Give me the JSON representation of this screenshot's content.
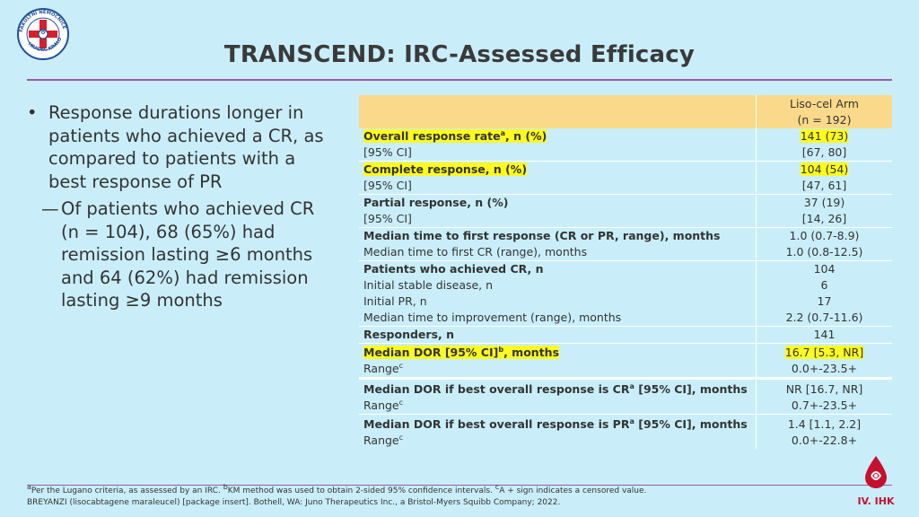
{
  "header": {
    "title": "TRANSCEND: IRC-Assessed Efficacy",
    "logo_text": "FAKULTNÍ NEMOCNICE HRADEC KRÁLOVÉ"
  },
  "bullets": {
    "main": "Response durations longer in patients who achieved a CR, as compared to patients with a best response of PR",
    "sub": "Of patients who achieved CR (n = 104), 68 (65%) had remission lasting ≥6 months and 64 (62%) had remission lasting ≥9 months"
  },
  "table": {
    "header_line1": "Liso-cel Arm",
    "header_line2": "(n = 192)",
    "rows": [
      {
        "label": "Overall response rate",
        "sup": "a",
        "suffix": ", n (%)",
        "value": "141 (73)"
      },
      {
        "label": "[95% CI]",
        "value": "[67, 80]"
      },
      {
        "label": "Complete response, n (%)",
        "value": "104 (54)"
      },
      {
        "label": "[95% CI]",
        "value": "[47, 61]"
      },
      {
        "label": "Partial response, n (%)",
        "value": "37 (19)"
      },
      {
        "label": "[95% CI]",
        "value": "[14, 26]"
      },
      {
        "label": "Median time to first response (CR or PR, range), months",
        "value": "1.0 (0.7-8.9)"
      },
      {
        "label": "Median time to first CR (range), months",
        "value": "1.0 (0.8-12.5)"
      },
      {
        "label": "Patients who achieved CR, n",
        "value": "104"
      },
      {
        "label": "Initial stable disease, n",
        "value": "6"
      },
      {
        "label": "Initial PR, n",
        "value": "17"
      },
      {
        "label": "Median time to improvement (range), months",
        "value": "2.2 (0.7-11.6)"
      },
      {
        "label": "Responders, n",
        "value": "141"
      },
      {
        "label": "Median DOR [95% CI]",
        "sup": "b",
        "suffix": ", months",
        "value": "16.7 [5.3, NR]"
      },
      {
        "label": "Range",
        "sup": "c",
        "value": "0.0+-23.5+"
      },
      {
        "label": "Median DOR if best overall response is CR",
        "sup": "a",
        "suffix": " [95% CI], months",
        "value": "NR [16.7, NR]"
      },
      {
        "label": "Range",
        "sup": "c",
        "value": "0.7+-23.5+"
      },
      {
        "label": "Median DOR if best overall response is PR",
        "sup": "a",
        "suffix": " [95% CI], months",
        "value": "1.4 [1.1, 2.2]"
      },
      {
        "label": "Range",
        "sup": "c",
        "value": "0.0+-22.8+"
      }
    ]
  },
  "footnotes": {
    "line1_a": "a",
    "line1_a_text": "Per the Lugano criteria, as assessed by an IRC. ",
    "line1_b": "b",
    "line1_b_text": "KM method was used to obtain 2-sided 95% confidence intervals. ",
    "line1_c": "c",
    "line1_c_text": "A + sign indicates a censored value.",
    "line2": "BREYANZI (lisocabtagene maraleucel) [package insert]. Bothell, WA: Juno Therapeutics Inc., a Bristol-Myers Squibb Company; 2022."
  },
  "brand": {
    "ihk_label": "IV. IHK"
  },
  "colors": {
    "background": "#c9eefa",
    "header_fill": "#fbd98a",
    "highlight": "#fdfb1f",
    "rule": "#9b5aa8",
    "brand_red": "#c4122e"
  }
}
